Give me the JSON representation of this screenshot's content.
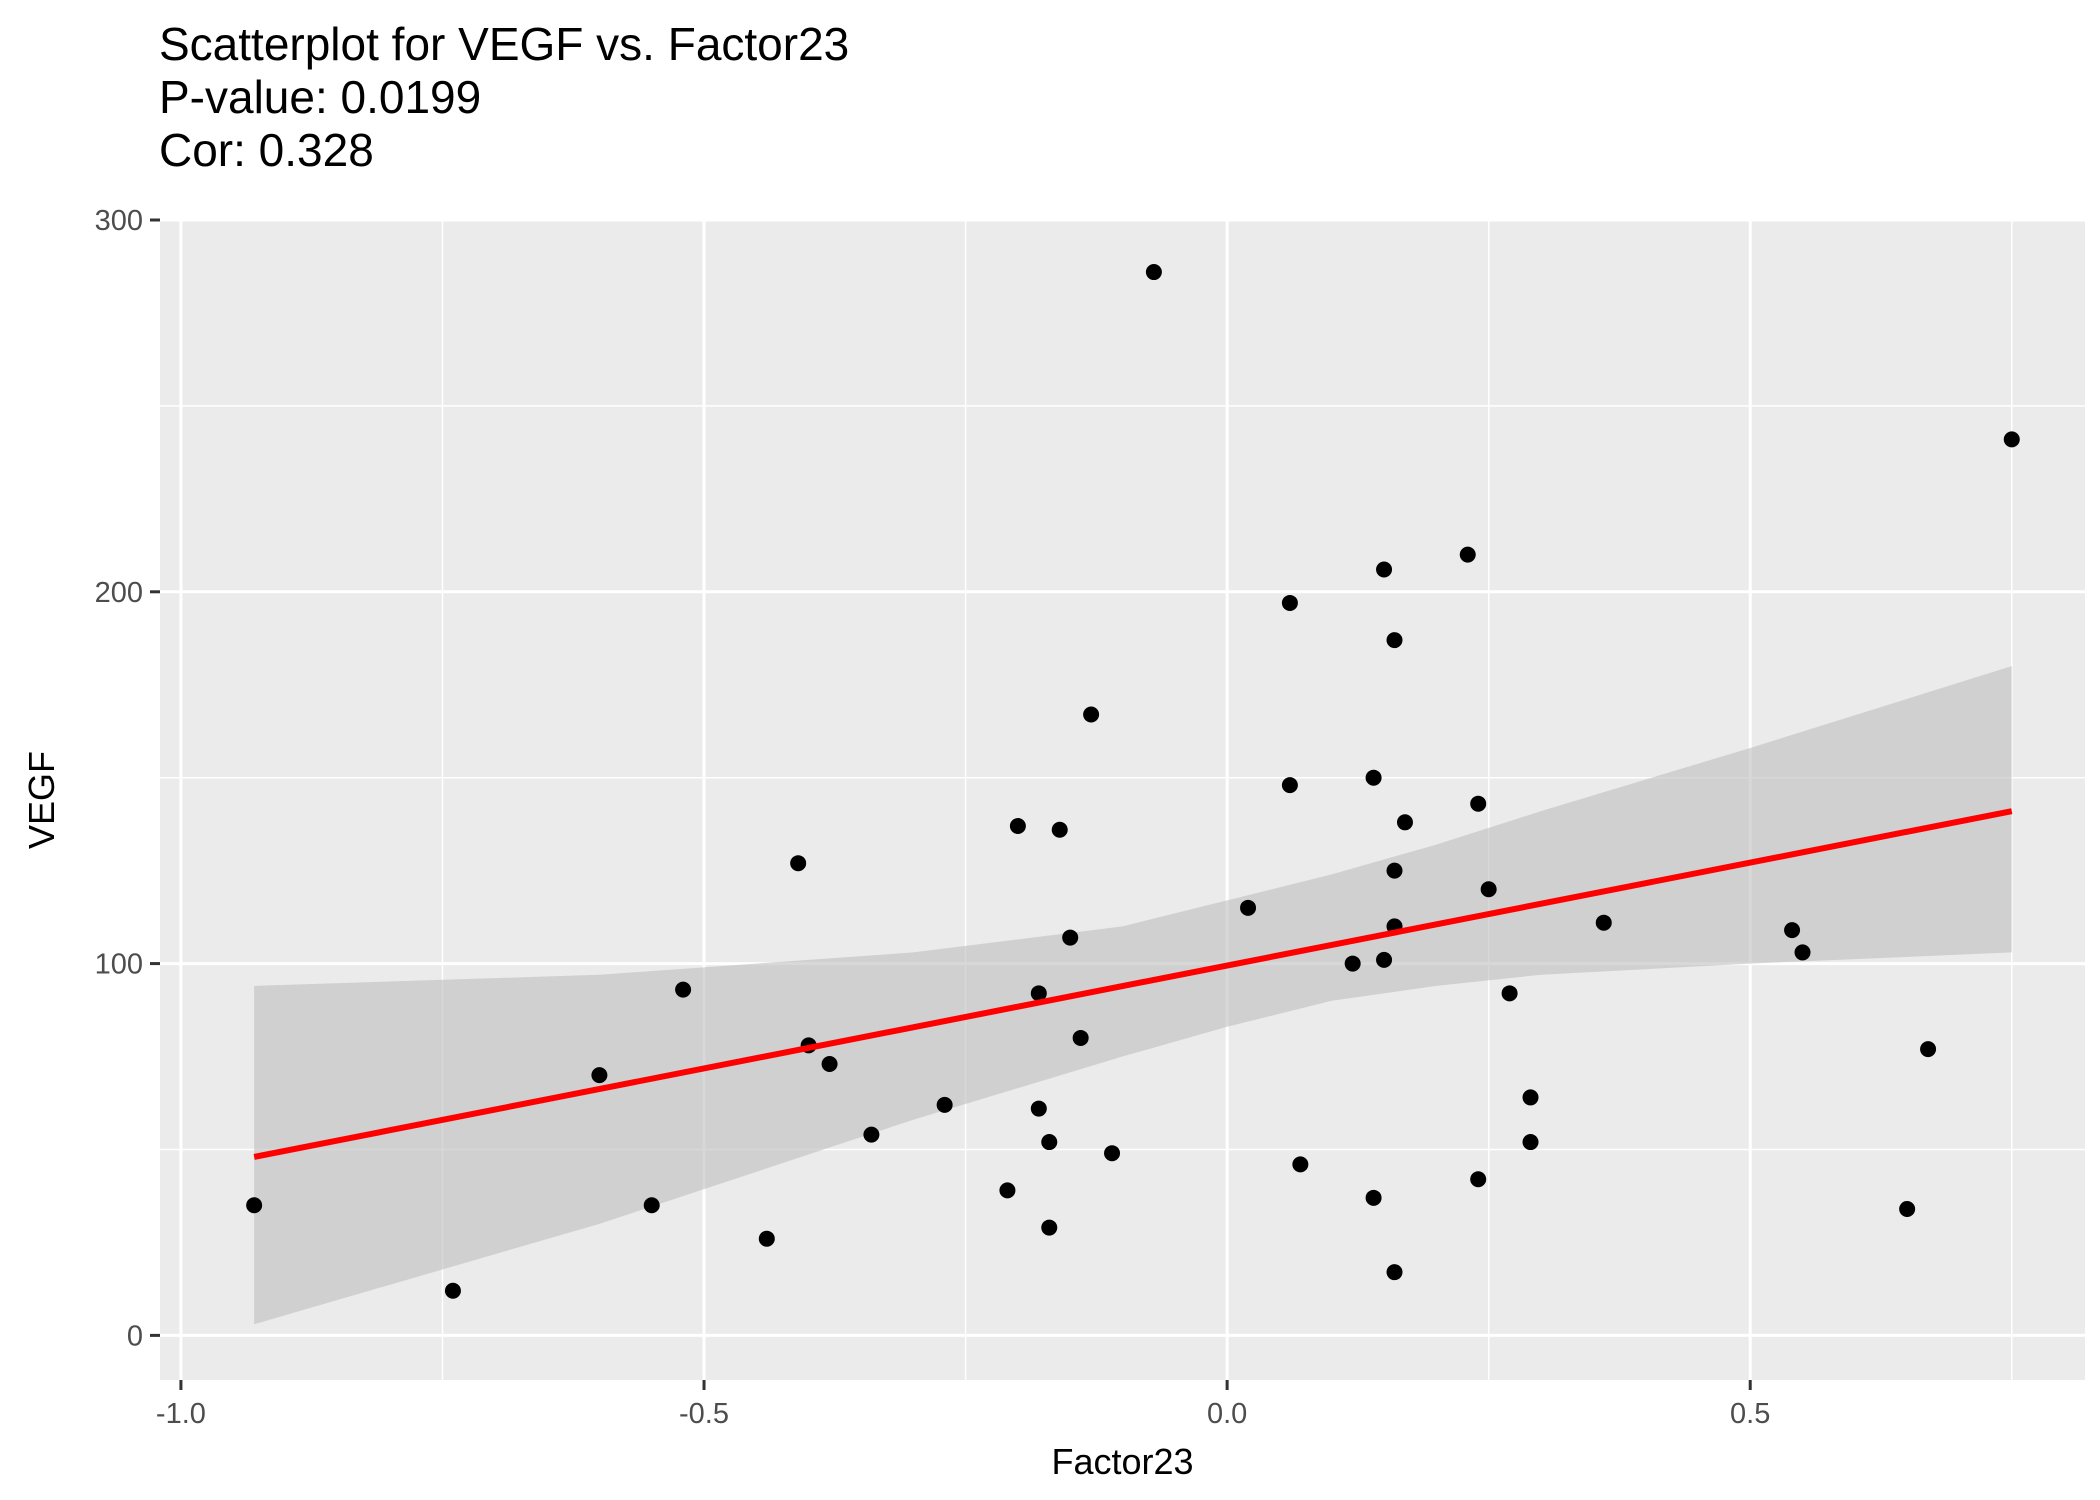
{
  "chart_data": {
    "type": "scatter",
    "title": "Scatterplot for VEGF vs. Factor23",
    "subtitle_lines": [
      "P-value: 0.0199",
      "Cor: 0.328"
    ],
    "xlabel": "Factor23",
    "ylabel": "VEGF",
    "xlim": [
      -1.02,
      0.82
    ],
    "ylim": [
      -12,
      300
    ],
    "x_ticks": [
      -1.0,
      -0.5,
      0.0,
      0.5
    ],
    "x_tick_labels": [
      "-1.0",
      "-0.5",
      "0.0",
      "0.5"
    ],
    "y_ticks": [
      0,
      100,
      200,
      300
    ],
    "y_tick_labels": [
      "0",
      "100",
      "200",
      "300"
    ],
    "grid": true,
    "colors": {
      "panel": "#ebebeb",
      "grid": "#ffffff",
      "point": "#000000",
      "fit_line": "#ff0000",
      "confidence_band": "#bebebe"
    },
    "points": [
      {
        "x": -0.93,
        "y": 35
      },
      {
        "x": -0.74,
        "y": 12
      },
      {
        "x": -0.6,
        "y": 70
      },
      {
        "x": -0.55,
        "y": 35
      },
      {
        "x": -0.52,
        "y": 93
      },
      {
        "x": -0.44,
        "y": 26
      },
      {
        "x": -0.41,
        "y": 127
      },
      {
        "x": -0.4,
        "y": 78
      },
      {
        "x": -0.38,
        "y": 73
      },
      {
        "x": -0.34,
        "y": 54
      },
      {
        "x": -0.27,
        "y": 62
      },
      {
        "x": -0.21,
        "y": 39
      },
      {
        "x": -0.2,
        "y": 137
      },
      {
        "x": -0.18,
        "y": 92
      },
      {
        "x": -0.18,
        "y": 61
      },
      {
        "x": -0.17,
        "y": 52
      },
      {
        "x": -0.17,
        "y": 29
      },
      {
        "x": -0.16,
        "y": 136
      },
      {
        "x": -0.15,
        "y": 107
      },
      {
        "x": -0.14,
        "y": 80
      },
      {
        "x": -0.13,
        "y": 167
      },
      {
        "x": -0.11,
        "y": 49
      },
      {
        "x": -0.07,
        "y": 286
      },
      {
        "x": 0.02,
        "y": 115
      },
      {
        "x": 0.06,
        "y": 197
      },
      {
        "x": 0.06,
        "y": 148
      },
      {
        "x": 0.07,
        "y": 46
      },
      {
        "x": 0.12,
        "y": 100
      },
      {
        "x": 0.14,
        "y": 150
      },
      {
        "x": 0.14,
        "y": 37
      },
      {
        "x": 0.15,
        "y": 206
      },
      {
        "x": 0.15,
        "y": 101
      },
      {
        "x": 0.16,
        "y": 17
      },
      {
        "x": 0.16,
        "y": 187
      },
      {
        "x": 0.16,
        "y": 125
      },
      {
        "x": 0.16,
        "y": 110
      },
      {
        "x": 0.17,
        "y": 138
      },
      {
        "x": 0.23,
        "y": 210
      },
      {
        "x": 0.24,
        "y": 143
      },
      {
        "x": 0.24,
        "y": 42
      },
      {
        "x": 0.25,
        "y": 120
      },
      {
        "x": 0.27,
        "y": 92
      },
      {
        "x": 0.29,
        "y": 64
      },
      {
        "x": 0.29,
        "y": 52
      },
      {
        "x": 0.36,
        "y": 111
      },
      {
        "x": 0.54,
        "y": 109
      },
      {
        "x": 0.55,
        "y": 103
      },
      {
        "x": 0.65,
        "y": 34
      },
      {
        "x": 0.67,
        "y": 77
      },
      {
        "x": 0.75,
        "y": 241
      }
    ],
    "fit_line": {
      "x": [
        -0.93,
        0.75
      ],
      "y": [
        48,
        141
      ]
    },
    "confidence_band": {
      "x": [
        -0.93,
        -0.6,
        -0.3,
        -0.1,
        0.0,
        0.1,
        0.2,
        0.3,
        0.5,
        0.75
      ],
      "lower": [
        3,
        30,
        58,
        75,
        83,
        90,
        94,
        97,
        100,
        103
      ],
      "upper": [
        94,
        97,
        103,
        110,
        117,
        124,
        132,
        141,
        158,
        180
      ]
    }
  }
}
